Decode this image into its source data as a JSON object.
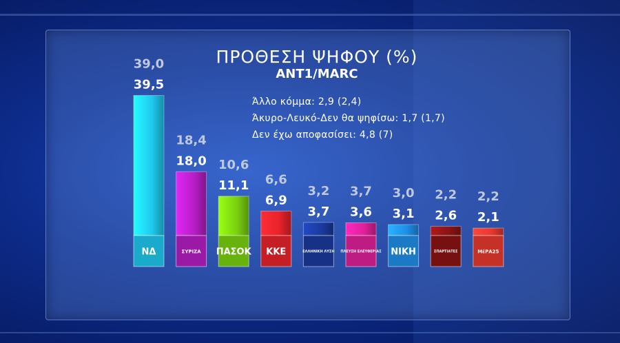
{
  "header": {
    "title": "ΠΡΟΘΕΣΗ ΨΗΦΟΥ (%)",
    "subtitle": "ANT1/MARC"
  },
  "notes": [
    "Άλλο κόμμα: 2,9 (2,4)",
    "Άκυρο-Λευκό-Δεν θα ψηφίσω: 1,7 (1,7)",
    "Δεν έχω αποφασίσει: 4,8 (7)"
  ],
  "chart_data": {
    "type": "bar",
    "title": "ΠΡΟΘΕΣΗ ΨΗΦΟΥ (%)",
    "subtitle": "ANT1/MARC",
    "categories": [
      "ΝΔ",
      "ΣΥΡΙΖΑ",
      "ΠΑΣΟΚ",
      "ΚΚΕ",
      "ΕΛΛΗΝΙΚΗ ΛΥΣΗ",
      "ΠΛΕΥΣΗ ΕΛΕΥΘΕΡΙΑΣ",
      "ΝΙΚΗ",
      "ΣΠΑΡΤΙΑΤΕΣ",
      "ΜέΡΑ25"
    ],
    "logo_labels": [
      "ΝΔ",
      "ΣΥΡΙΖΑ",
      "ΠΑΣΟΚ",
      "ΚΚΕ",
      "ΕΛΛΗΝΙΚΗ ΛΥΣΗ",
      "ΠΛΕΥΣΗ ΕΛΕΥΘΕΡΙΑΣ",
      "ΝΙΚΗ",
      "ΣΠΑΡΤΙΑΤΕΣ",
      "ΜέΡΑ25"
    ],
    "series": [
      {
        "values": [
          39.5,
          18.0,
          11.1,
          6.9,
          3.7,
          3.6,
          3.1,
          2.6,
          2.1
        ],
        "labels": [
          "39,5",
          "18,0",
          "11,1",
          "6,9",
          "3,7",
          "3,6",
          "3,1",
          "2,6",
          "2,1"
        ]
      },
      {
        "values": [
          39.0,
          18.4,
          10.6,
          6.6,
          3.2,
          3.7,
          3.0,
          2.2,
          2.2
        ],
        "labels": [
          "39,0",
          "18,4",
          "10,6",
          "6,6",
          "3,2",
          "3,7",
          "3,0",
          "2,2",
          "2,2"
        ]
      }
    ],
    "colors": [
      "#1fc9f0",
      "#b51fc4",
      "#7ad10f",
      "#e8232a",
      "#1a3a9e",
      "#e0219a",
      "#1e8fe8",
      "#8c1414",
      "#e8382e"
    ],
    "ylim": [
      0,
      40
    ]
  }
}
